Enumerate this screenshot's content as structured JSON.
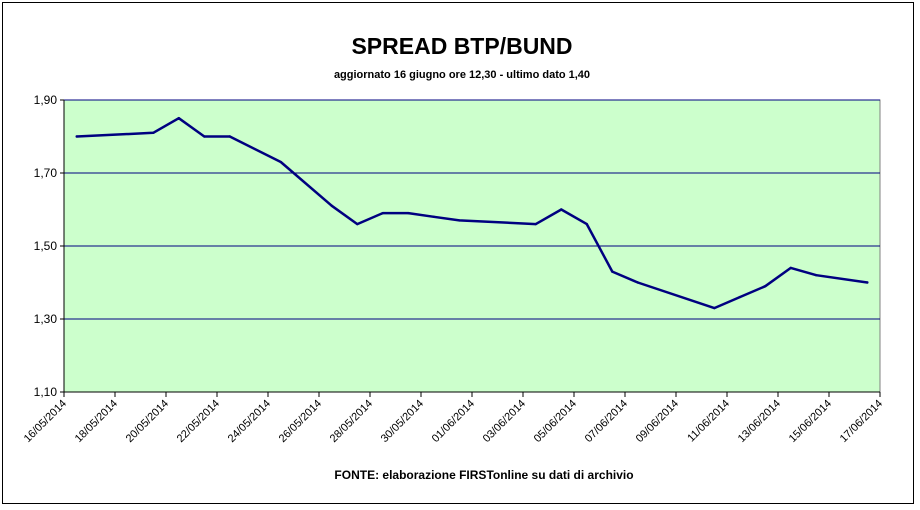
{
  "chart_data": {
    "type": "line",
    "title": "SPREAD BTP/BUND",
    "subtitle": "aggiornato 16 giugno ore 12,30 - ultimo dato 1,40",
    "source": "FONTE: elaborazione FIRSTonline su dati di archivio",
    "xlabel": "",
    "ylabel": "",
    "ylim": [
      1.1,
      1.9
    ],
    "yticks": [
      "1,10",
      "1,30",
      "1,50",
      "1,70",
      "1,90"
    ],
    "ytick_values": [
      1.1,
      1.3,
      1.5,
      1.7,
      1.9
    ],
    "xtick_labels": [
      "16/05/2014",
      "18/05/2014",
      "20/05/2014",
      "22/05/2014",
      "24/05/2014",
      "26/05/2014",
      "28/05/2014",
      "30/05/2014",
      "01/06/2014",
      "03/06/2014",
      "05/06/2014",
      "07/06/2014",
      "09/06/2014",
      "11/06/2014",
      "13/06/2014",
      "15/06/2014",
      "17/06/2014"
    ],
    "x_day_range": [
      16,
      48
    ],
    "grid": true,
    "legend": "none",
    "colors": {
      "plot_background": "#ccffcc",
      "line": "#000080",
      "grid": "#000080"
    },
    "series": [
      {
        "dates": [
          "16/05/2014",
          "19/05/2014",
          "20/05/2014",
          "21/05/2014",
          "22/05/2014",
          "23/05/2014",
          "24/05/2014",
          "26/05/2014",
          "27/05/2014",
          "28/05/2014",
          "29/05/2014",
          "30/05/2014",
          "02/06/2014",
          "03/06/2014",
          "04/06/2014",
          "05/06/2014",
          "06/06/2014",
          "09/06/2014",
          "10/06/2014",
          "11/06/2014",
          "12/06/2014",
          "13/06/2014",
          "16/06/2014"
        ],
        "x_days": [
          16.5,
          19.5,
          20.5,
          21.5,
          22.5,
          24.5,
          26.5,
          27.5,
          28.5,
          29.5,
          30.5,
          31.5,
          34.5,
          35.5,
          36.5,
          37.5,
          38.5,
          41.5,
          42.5,
          43.5,
          44.5,
          45.5,
          47.5
        ],
        "values": [
          1.8,
          1.81,
          1.85,
          1.8,
          1.8,
          1.73,
          1.61,
          1.56,
          1.59,
          1.59,
          1.58,
          1.57,
          1.56,
          1.6,
          1.56,
          1.43,
          1.4,
          1.33,
          1.36,
          1.39,
          1.44,
          1.42,
          1.4
        ]
      }
    ]
  }
}
